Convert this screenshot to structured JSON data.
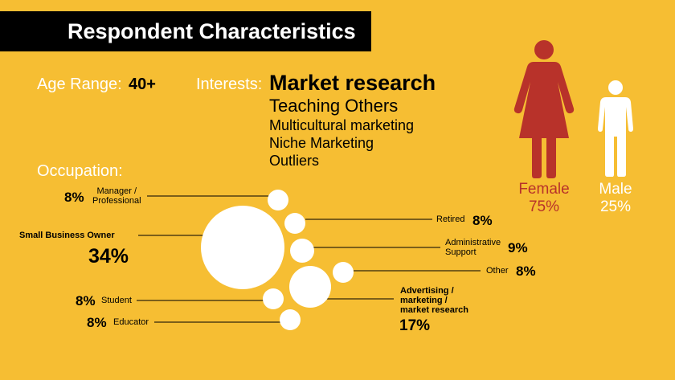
{
  "title": "Respondent Characteristics",
  "age": {
    "label": "Age Range:",
    "value": "40+"
  },
  "interests": {
    "label": "Interests:",
    "items": [
      "Market research",
      "Teaching Others",
      "Multicultural marketing",
      "Niche Marketing",
      "Outliers"
    ]
  },
  "occupation": {
    "label": "Occupation:",
    "items": [
      {
        "name": "Manager / Professional",
        "lines": [
          "Manager /",
          "Professional"
        ],
        "pct": "8%",
        "value": 8
      },
      {
        "name": "Small Business Owner",
        "lines": [
          "Small Business Owner"
        ],
        "pct": "34%",
        "value": 34
      },
      {
        "name": "Student",
        "lines": [
          "Student"
        ],
        "pct": "8%",
        "value": 8
      },
      {
        "name": "Educator",
        "lines": [
          "Educator"
        ],
        "pct": "8%",
        "value": 8
      },
      {
        "name": "Retired",
        "lines": [
          "Retired"
        ],
        "pct": "8%",
        "value": 8
      },
      {
        "name": "Administrative Support",
        "lines": [
          "Administrative",
          "Support"
        ],
        "pct": "9%",
        "value": 9
      },
      {
        "name": "Other",
        "lines": [
          "Other"
        ],
        "pct": "8%",
        "value": 8
      },
      {
        "name": "Advertising / marketing / market research",
        "lines": [
          "Advertising /",
          "marketing /",
          "market research"
        ],
        "pct": "17%",
        "value": 17
      }
    ]
  },
  "gender": {
    "female": {
      "label": "Female",
      "pct": "75%",
      "value": 75,
      "color": "#B8322A"
    },
    "male": {
      "label": "Male",
      "pct": "25%",
      "value": 25,
      "color": "#FFFFFF"
    }
  },
  "colors": {
    "background": "#F6BE33",
    "title_bar": "#000000",
    "bubble": "#FFFFFF"
  }
}
